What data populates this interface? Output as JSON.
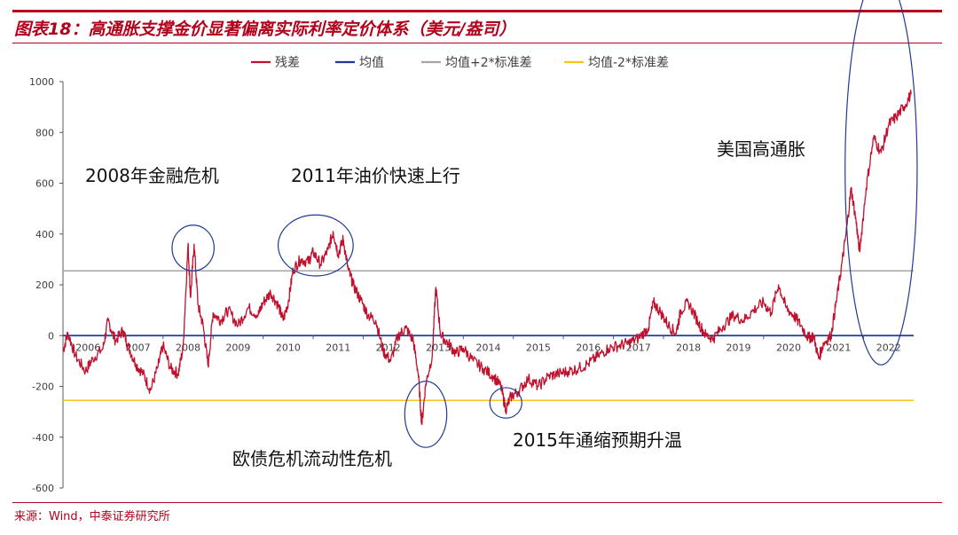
{
  "figure": {
    "title": "图表18：高通胀支撑金价显著偏离实际利率定价体系（美元/盎司）",
    "source": "来源：Wind，中泰证券研究所"
  },
  "colors": {
    "brand": "#b3001b",
    "residual": "#c0102d",
    "mean": "#1f3a93",
    "upper": "#a6a6a6",
    "lower": "#f5c518",
    "circle": "#1f3a93"
  },
  "chart_data": {
    "type": "line",
    "legend_position": "top",
    "xlabel": "",
    "ylabel": "",
    "ylim": [
      -600,
      1000
    ],
    "yticks": [
      "1000",
      "800",
      "600",
      "400",
      "200",
      "0",
      "-200",
      "-400",
      "-600"
    ],
    "xlim": [
      2006.0,
      2023.0
    ],
    "xtick_labels": [
      "2006",
      "2007",
      "2008",
      "2009",
      "2010",
      "2011",
      "2012",
      "2013",
      "2014",
      "2015",
      "2016",
      "2017",
      "2018",
      "2019",
      "2020",
      "2021",
      "2022"
    ],
    "series": [
      {
        "name": "残差",
        "key": "residual",
        "points": [
          [
            2006.0,
            -60
          ],
          [
            2006.1,
            10
          ],
          [
            2006.25,
            -80
          ],
          [
            2006.45,
            -140
          ],
          [
            2006.6,
            -90
          ],
          [
            2006.8,
            -50
          ],
          [
            2006.9,
            60
          ],
          [
            2007.05,
            -20
          ],
          [
            2007.2,
            20
          ],
          [
            2007.3,
            -40
          ],
          [
            2007.45,
            -110
          ],
          [
            2007.6,
            -150
          ],
          [
            2007.75,
            -215
          ],
          [
            2007.9,
            -120
          ],
          [
            2008.0,
            -40
          ],
          [
            2008.15,
            -130
          ],
          [
            2008.3,
            -150
          ],
          [
            2008.4,
            -50
          ],
          [
            2008.5,
            360
          ],
          [
            2008.55,
            150
          ],
          [
            2008.62,
            360
          ],
          [
            2008.7,
            120
          ],
          [
            2008.8,
            40
          ],
          [
            2008.9,
            -120
          ],
          [
            2009.0,
            90
          ],
          [
            2009.15,
            60
          ],
          [
            2009.3,
            100
          ],
          [
            2009.5,
            40
          ],
          [
            2009.7,
            110
          ],
          [
            2009.9,
            80
          ],
          [
            2010.0,
            130
          ],
          [
            2010.15,
            170
          ],
          [
            2010.3,
            120
          ],
          [
            2010.4,
            60
          ],
          [
            2010.5,
            130
          ],
          [
            2010.6,
            260
          ],
          [
            2010.75,
            300
          ],
          [
            2010.9,
            290
          ],
          [
            2011.0,
            330
          ],
          [
            2011.15,
            280
          ],
          [
            2011.3,
            340
          ],
          [
            2011.4,
            410
          ],
          [
            2011.5,
            320
          ],
          [
            2011.6,
            380
          ],
          [
            2011.7,
            260
          ],
          [
            2011.8,
            200
          ],
          [
            2011.95,
            140
          ],
          [
            2012.1,
            80
          ],
          [
            2012.25,
            60
          ],
          [
            2012.4,
            -60
          ],
          [
            2012.55,
            -100
          ],
          [
            2012.7,
            0
          ],
          [
            2012.85,
            30
          ],
          [
            2013.0,
            -20
          ],
          [
            2013.1,
            -150
          ],
          [
            2013.17,
            -350
          ],
          [
            2013.25,
            -190
          ],
          [
            2013.38,
            -80
          ],
          [
            2013.45,
            190
          ],
          [
            2013.55,
            0
          ],
          [
            2013.7,
            -30
          ],
          [
            2013.85,
            -70
          ],
          [
            2014.0,
            -50
          ],
          [
            2014.2,
            -100
          ],
          [
            2014.4,
            -130
          ],
          [
            2014.6,
            -160
          ],
          [
            2014.75,
            -200
          ],
          [
            2014.85,
            -290
          ],
          [
            2014.95,
            -240
          ],
          [
            2015.1,
            -220
          ],
          [
            2015.3,
            -170
          ],
          [
            2015.5,
            -200
          ],
          [
            2015.7,
            -160
          ],
          [
            2015.9,
            -150
          ],
          [
            2016.1,
            -140
          ],
          [
            2016.3,
            -130
          ],
          [
            2016.5,
            -110
          ],
          [
            2016.7,
            -80
          ],
          [
            2016.9,
            -50
          ],
          [
            2017.1,
            -40
          ],
          [
            2017.3,
            -30
          ],
          [
            2017.5,
            -10
          ],
          [
            2017.7,
            30
          ],
          [
            2017.8,
            130
          ],
          [
            2017.95,
            90
          ],
          [
            2018.1,
            40
          ],
          [
            2018.25,
            10
          ],
          [
            2018.35,
            100
          ],
          [
            2018.5,
            130
          ],
          [
            2018.7,
            50
          ],
          [
            2018.85,
            0
          ],
          [
            2019.0,
            -10
          ],
          [
            2019.2,
            40
          ],
          [
            2019.4,
            80
          ],
          [
            2019.6,
            60
          ],
          [
            2019.8,
            100
          ],
          [
            2020.0,
            130
          ],
          [
            2020.15,
            90
          ],
          [
            2020.3,
            200
          ],
          [
            2020.45,
            110
          ],
          [
            2020.6,
            80
          ],
          [
            2020.75,
            40
          ],
          [
            2020.9,
            -10
          ],
          [
            2021.0,
            0
          ],
          [
            2021.1,
            -90
          ],
          [
            2021.2,
            -30
          ],
          [
            2021.35,
            0
          ],
          [
            2021.45,
            130
          ],
          [
            2021.55,
            260
          ],
          [
            2021.65,
            400
          ],
          [
            2021.75,
            580
          ],
          [
            2021.85,
            450
          ],
          [
            2021.92,
            330
          ],
          [
            2022.05,
            580
          ],
          [
            2022.2,
            780
          ],
          [
            2022.35,
            720
          ],
          [
            2022.5,
            830
          ],
          [
            2022.65,
            860
          ],
          [
            2022.8,
            900
          ],
          [
            2022.95,
            950
          ]
        ]
      },
      {
        "name": "均值",
        "key": "mean",
        "value": 0
      },
      {
        "name": "均值+2*标准差",
        "key": "upper",
        "value": 255
      },
      {
        "name": "均值-2*标准差",
        "key": "lower",
        "value": -255
      }
    ],
    "annotations": [
      {
        "text": "2008年金融危机",
        "kind": "label"
      },
      {
        "text": "2011年油价快速上行",
        "kind": "label"
      },
      {
        "text": "欧债危机流动性危机",
        "kind": "label"
      },
      {
        "text": "2015年通缩预期升温",
        "kind": "label"
      },
      {
        "text": "美国高通胀",
        "kind": "label"
      }
    ],
    "highlight_ellipses": [
      {
        "name": "2008-spike",
        "x": 2008.6,
        "y": 345,
        "rx_years": 0.42,
        "ry_value": 90
      },
      {
        "name": "2011-plateau",
        "x": 2011.05,
        "y": 355,
        "rx_years": 0.75,
        "ry_value": 120
      },
      {
        "name": "2013-drop",
        "x": 2013.25,
        "y": -310,
        "rx_years": 0.42,
        "ry_value": 130
      },
      {
        "name": "2015-trough",
        "x": 2014.85,
        "y": -265,
        "rx_years": 0.32,
        "ry_value": 60
      },
      {
        "name": "2022-inflation",
        "x": 2022.35,
        "y": 655,
        "rx_years": 0.72,
        "ry_value": 770
      }
    ]
  }
}
